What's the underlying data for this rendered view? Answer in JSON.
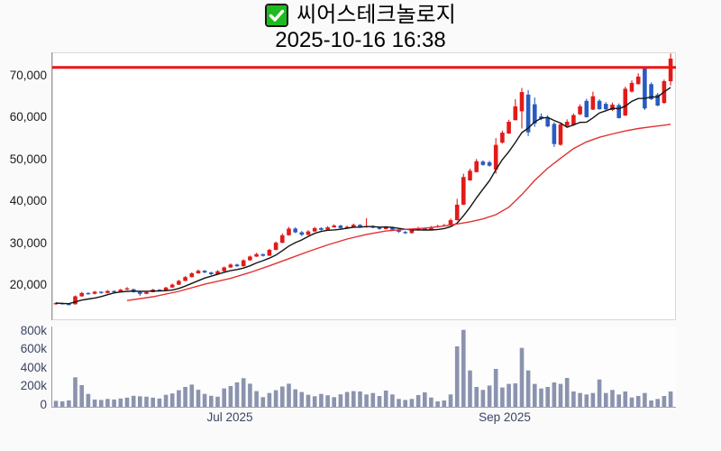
{
  "header": {
    "title": "씨어스테크놀로지",
    "timestamp": "2025-10-16 16:38",
    "check_icon": "checkbox-checked",
    "check_color": "#1fba1f"
  },
  "chart_data": {
    "type": "candlestick+volume",
    "title": "씨어스테크놀로지",
    "timestamp": "2025-10-16 16:38",
    "grid": "off",
    "up_color": "#e21a1a",
    "down_color": "#2a5cbf",
    "volume_color": "#8b93ae",
    "price_axis": {
      "side": "left",
      "labels": [
        "70,000",
        "60,000",
        "50,000",
        "40,000",
        "30,000",
        "20,000"
      ],
      "tick_values": [
        70000,
        60000,
        50000,
        40000,
        30000,
        20000
      ],
      "range": [
        11500,
        76000
      ]
    },
    "volume_axis": {
      "side": "left",
      "labels": [
        "800k",
        "600k",
        "400k",
        "200k",
        "0"
      ],
      "tick_values": [
        800000,
        600000,
        400000,
        200000,
        0
      ],
      "range": [
        0,
        860000
      ]
    },
    "x_axis": {
      "labels": [
        "Jul 2025",
        "Sep 2025"
      ],
      "label_anchor_indices": [
        27,
        69
      ]
    },
    "resistance_line": {
      "value": 72000,
      "color": "#ee1414",
      "width": 3
    },
    "ma_short": {
      "name": "short-moving-average",
      "period": 7,
      "color": "#141414"
    },
    "ma_long": {
      "name": "long-moving-average",
      "color": "#e53030",
      "points": [
        [
          11,
          16300
        ],
        [
          15,
          17200
        ],
        [
          19,
          18500
        ],
        [
          23,
          20200
        ],
        [
          27,
          21600
        ],
        [
          30,
          23000
        ],
        [
          33,
          24600
        ],
        [
          36,
          26300
        ],
        [
          39,
          28000
        ],
        [
          42,
          29600
        ],
        [
          45,
          31000
        ],
        [
          48,
          32100
        ],
        [
          51,
          32900
        ],
        [
          54,
          33300
        ],
        [
          57,
          33600
        ],
        [
          60,
          34100
        ],
        [
          62,
          34600
        ],
        [
          64,
          35100
        ],
        [
          66,
          35800
        ],
        [
          68,
          36800
        ],
        [
          70,
          38600
        ],
        [
          72,
          41600
        ],
        [
          74,
          45000
        ],
        [
          76,
          47900
        ],
        [
          78,
          50300
        ],
        [
          80,
          52600
        ],
        [
          82,
          54200
        ],
        [
          84,
          55300
        ],
        [
          86,
          56100
        ],
        [
          88,
          56800
        ],
        [
          90,
          57400
        ],
        [
          92,
          57800
        ],
        [
          94,
          58200
        ],
        [
          95,
          58400
        ]
      ]
    },
    "candles": {
      "count": 96,
      "open": [
        15500,
        15700,
        15500,
        15400,
        17300,
        18100,
        17900,
        18400,
        18100,
        18600,
        18400,
        18900,
        19000,
        18300,
        17900,
        18300,
        18900,
        18600,
        19400,
        20100,
        21000,
        21900,
        22800,
        23400,
        23000,
        22600,
        23300,
        24200,
        24900,
        24500,
        25900,
        26800,
        27400,
        27000,
        28400,
        30100,
        31900,
        33500,
        32600,
        32000,
        32800,
        33600,
        33200,
        33800,
        34200,
        33600,
        33900,
        34400,
        33800,
        34100,
        33700,
        33400,
        33800,
        33200,
        32700,
        32400,
        33100,
        33600,
        33200,
        33800,
        34100,
        34300,
        35500,
        39200,
        45000,
        47000,
        49500,
        49300,
        47600,
        54000,
        56200,
        59400,
        61500,
        65500,
        63200,
        60300,
        60000,
        58500,
        53500,
        58000,
        58200,
        60800,
        64000,
        61900,
        64000,
        63300,
        61800,
        63000,
        60500,
        66200,
        68000,
        71900,
        68000,
        65500,
        63500,
        68700
      ],
      "high": [
        15900,
        15850,
        15600,
        17500,
        18350,
        18250,
        18600,
        18500,
        18800,
        18700,
        19100,
        19500,
        19100,
        18500,
        18550,
        19100,
        19000,
        19600,
        20350,
        21250,
        22150,
        23050,
        23700,
        23600,
        23200,
        23550,
        24450,
        25200,
        25100,
        26150,
        27050,
        27700,
        27500,
        28650,
        30400,
        32300,
        33900,
        33800,
        32900,
        33100,
        33900,
        33800,
        34100,
        34500,
        34400,
        34200,
        34700,
        34550,
        36000,
        34300,
        33900,
        34100,
        33950,
        33400,
        32900,
        33400,
        33900,
        33750,
        34100,
        34400,
        34600,
        35900,
        40600,
        46600,
        47800,
        50100,
        49800,
        49700,
        55100,
        56900,
        59500,
        64400,
        67100,
        66600,
        64800,
        61000,
        60600,
        58900,
        58800,
        59600,
        61000,
        63200,
        64500,
        66200,
        64400,
        63700,
        63600,
        63400,
        67400,
        68900,
        70600,
        72200,
        68400,
        65900,
        69100,
        75300
      ],
      "low": [
        15300,
        15350,
        15200,
        15300,
        17200,
        17700,
        17750,
        17900,
        18000,
        18200,
        18300,
        18800,
        18200,
        17400,
        17800,
        18250,
        18450,
        18500,
        19300,
        20000,
        20900,
        21800,
        22700,
        22850,
        22400,
        22500,
        23200,
        24100,
        24350,
        24400,
        25800,
        26700,
        26800,
        26950,
        28300,
        30000,
        31800,
        32400,
        31700,
        31900,
        32700,
        33000,
        33100,
        33700,
        33400,
        33450,
        33800,
        33650,
        33700,
        33550,
        33200,
        33300,
        33100,
        32500,
        32200,
        32300,
        33000,
        33100,
        33100,
        33700,
        34000,
        34200,
        35400,
        39100,
        44900,
        46900,
        48500,
        48300,
        46600,
        53800,
        56100,
        59300,
        57400,
        55600,
        57800,
        59400,
        57700,
        53000,
        53300,
        57800,
        58000,
        60600,
        60000,
        61800,
        61900,
        61800,
        61600,
        59800,
        60400,
        66000,
        67900,
        61800,
        64200,
        62700,
        63300,
        67700
      ],
      "close": [
        15700,
        15500,
        15400,
        17300,
        18100,
        17900,
        18400,
        18100,
        18600,
        18400,
        18900,
        19200,
        18300,
        17900,
        18300,
        18900,
        18600,
        19400,
        20100,
        21000,
        21900,
        22800,
        23400,
        23000,
        22600,
        23300,
        24200,
        24900,
        24500,
        25900,
        26800,
        27400,
        27000,
        28400,
        30100,
        31900,
        33500,
        32600,
        32000,
        32800,
        33600,
        33200,
        33800,
        34200,
        33600,
        33900,
        34400,
        33800,
        34100,
        33700,
        33400,
        33800,
        33200,
        32700,
        32400,
        33100,
        33600,
        33200,
        33800,
        34100,
        34300,
        35500,
        39200,
        45800,
        47300,
        49600,
        48700,
        48500,
        53500,
        56400,
        59000,
        62700,
        66100,
        56500,
        58600,
        59700,
        57900,
        53700,
        58400,
        59000,
        60600,
        62700,
        60100,
        65100,
        62000,
        62000,
        63100,
        59900,
        66900,
        68300,
        69800,
        62200,
        64400,
        62900,
        68700,
        74100
      ],
      "volume": [
        45000,
        40000,
        50000,
        300000,
        215000,
        120000,
        60000,
        55000,
        65000,
        60000,
        70000,
        80000,
        100000,
        95000,
        90000,
        80000,
        70000,
        110000,
        125000,
        160000,
        195000,
        220000,
        165000,
        120000,
        100000,
        90000,
        180000,
        205000,
        245000,
        290000,
        230000,
        150000,
        85000,
        130000,
        160000,
        200000,
        230000,
        170000,
        140000,
        110000,
        95000,
        120000,
        105000,
        85000,
        115000,
        140000,
        150000,
        146000,
        114000,
        130000,
        98000,
        156000,
        114000,
        65000,
        55000,
        65000,
        107000,
        137000,
        81000,
        39000,
        49000,
        114000,
        634000,
        813000,
        374000,
        195000,
        163000,
        211000,
        390000,
        189000,
        228000,
        234000,
        618000,
        374000,
        228000,
        179000,
        195000,
        244000,
        228000,
        293000,
        146000,
        130000,
        114000,
        130000,
        276000,
        130000,
        163000,
        114000,
        146000,
        81000,
        98000,
        130000,
        49000,
        65000,
        98000,
        146000
      ]
    }
  }
}
